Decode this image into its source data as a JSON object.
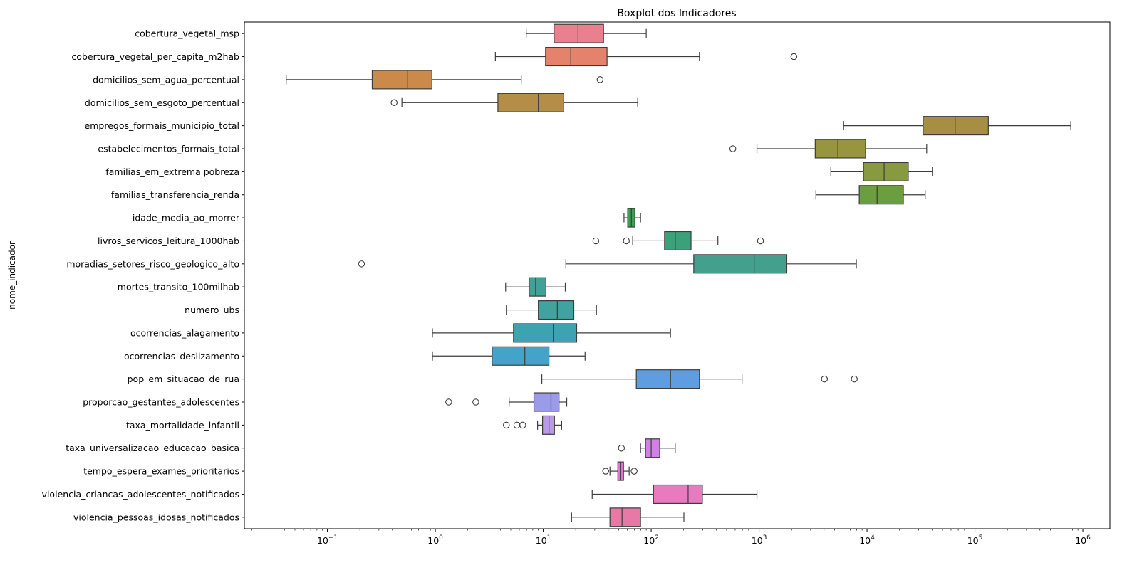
{
  "chart_data": {
    "type": "boxplot",
    "orientation": "horizontal",
    "title": "Boxplot dos Indicadores",
    "xlabel": "",
    "ylabel": "nome_indicador",
    "xscale": "log",
    "xlim": [
      0.017,
      1780000
    ],
    "x_tick_labels": [
      "10^-1",
      "10^0",
      "10^1",
      "10^2",
      "10^3",
      "10^4",
      "10^5",
      "10^6"
    ],
    "grid": false,
    "series": [
      {
        "name": "cobertura_vegetal_msp",
        "whislo": 6.95,
        "q1": 12.6,
        "med": 21,
        "q3": 36.2,
        "whishi": 90,
        "fliers": [],
        "color": "#e8808f"
      },
      {
        "name": "cobertura_vegetal_per_capita_m2hab",
        "whislo": 3.6,
        "q1": 10.5,
        "med": 18,
        "q3": 39,
        "whishi": 280,
        "fliers": [
          2100
        ],
        "color": "#e5826c"
      },
      {
        "name": "domicilios_sem_agua_percentual",
        "whislo": 0.0415,
        "q1": 0.26,
        "med": 0.55,
        "q3": 0.93,
        "whishi": 6.25,
        "fliers": [
          33.6
        ],
        "color": "#cc8a4a"
      },
      {
        "name": "domicilios_sem_esgoto_percentual",
        "whislo": 0.49,
        "q1": 3.8,
        "med": 9.0,
        "q3": 15.5,
        "whishi": 75,
        "fliers": [
          0.415
        ],
        "color": "#b48d47"
      },
      {
        "name": "empregos_formais_municipio_total",
        "whislo": 6070,
        "q1": 33100,
        "med": 65500,
        "q3": 133000,
        "whishi": 773000,
        "fliers": [],
        "color": "#a68e42"
      },
      {
        "name": "estabelecimentos_formais_total",
        "whislo": 955,
        "q1": 3310,
        "med": 5370,
        "q3": 9700,
        "whishi": 35700,
        "fliers": [
          571
        ],
        "color": "#98953f"
      },
      {
        "name": "familias_em_extrema pobreza",
        "whislo": 4620,
        "q1": 9270,
        "med": 14400,
        "q3": 24100,
        "whishi": 40300,
        "fliers": [],
        "color": "#889a40"
      },
      {
        "name": "familias_transferencia_renda",
        "whislo": 3360,
        "q1": 8470,
        "med": 12400,
        "q3": 21700,
        "whishi": 34600,
        "fliers": [],
        "color": "#6a9e3f"
      },
      {
        "name": "idade_media_ao_morrer",
        "whislo": 56,
        "q1": 60.6,
        "med": 65.5,
        "q3": 70.6,
        "whishi": 79.7,
        "fliers": [],
        "color": "#3aa153"
      },
      {
        "name": "livros_servicos_leitura_1000hab",
        "whislo": 67.4,
        "q1": 133,
        "med": 167,
        "q3": 234,
        "whishi": 415,
        "fliers": [
          30.7,
          58.9,
          1030
        ],
        "color": "#3ca17a"
      },
      {
        "name": "moradias_setores_risco_geologico_alto",
        "whislo": 16.2,
        "q1": 248,
        "med": 900,
        "q3": 1806,
        "whishi": 7960,
        "fliers": [
          0.207
        ],
        "color": "#42a08c"
      },
      {
        "name": "mortes_transito_100milhab",
        "whislo": 4.48,
        "q1": 7.4,
        "med": 8.5,
        "q3": 10.6,
        "whishi": 16,
        "fliers": [],
        "color": "#41a196"
      },
      {
        "name": "numero_ubs",
        "whislo": 4.55,
        "q1": 9.0,
        "med": 13.5,
        "q3": 19.2,
        "whishi": 31.1,
        "fliers": [],
        "color": "#40a3a0"
      },
      {
        "name": "ocorrencias_alagamento",
        "whislo": 0.94,
        "q1": 5.3,
        "med": 12.4,
        "q3": 20.4,
        "whishi": 151,
        "fliers": [],
        "color": "#3da3b0"
      },
      {
        "name": "ocorrencias_deslizamento",
        "whislo": 0.94,
        "q1": 3.36,
        "med": 6.75,
        "q3": 11.3,
        "whishi": 24.4,
        "fliers": [],
        "color": "#44a3c8"
      },
      {
        "name": "pop_em_situacao_de_rua",
        "whislo": 9.7,
        "q1": 72.8,
        "med": 151,
        "q3": 280,
        "whishi": 695,
        "fliers": [
          4030,
          7620
        ],
        "color": "#5e9ee0"
      },
      {
        "name": "proporcao_gestantes_adolescentes",
        "whislo": 4.83,
        "q1": 8.2,
        "med": 11.8,
        "q3": 14,
        "whishi": 16.5,
        "fliers": [
          1.33,
          2.37
        ],
        "color": "#9b9be9"
      },
      {
        "name": "taxa_mortalidade_infantil",
        "whislo": 8.86,
        "q1": 9.85,
        "med": 11.3,
        "q3": 12.7,
        "whishi": 14.8,
        "fliers": [
          4.55,
          5.7,
          6.45
        ],
        "color": "#b89ae9"
      },
      {
        "name": "taxa_universalizacao_educacao_basica",
        "whislo": 79.7,
        "q1": 88.6,
        "med": 100,
        "q3": 120,
        "whishi": 167,
        "fliers": [
          53
        ],
        "color": "#d280e8"
      },
      {
        "name": "tempo_espera_exames_prioritarios",
        "whislo": 41.5,
        "q1": 49.1,
        "med": 52.2,
        "q3": 55.4,
        "whishi": 62.5,
        "fliers": [
          37.9,
          69.5
        ],
        "color": "#e46fd8"
      },
      {
        "name": "violencia_criancas_adolescentes_notificados",
        "whislo": 28.4,
        "q1": 105,
        "med": 220,
        "q3": 298,
        "whishi": 955,
        "fliers": [],
        "color": "#e87bc0"
      },
      {
        "name": "violencia_pessoas_idosas_notificados",
        "whislo": 18.3,
        "q1": 41.5,
        "med": 53.7,
        "q3": 79.7,
        "whishi": 201,
        "fliers": [],
        "color": "#e879a6"
      }
    ]
  }
}
